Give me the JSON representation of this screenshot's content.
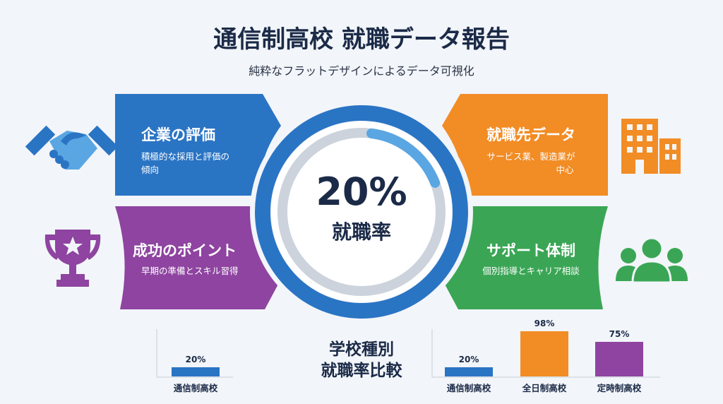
{
  "header": {
    "title": "通信制高校 就職データ報告",
    "subtitle": "純粋なフラットデザインによるデータ可視化"
  },
  "center": {
    "value": "20%",
    "label": "就職率",
    "progress_percent": 20
  },
  "panels": [
    {
      "title": "企業の評価",
      "desc_line1": "積極的な採用と評価の",
      "desc_line2": "傾向",
      "color": "#2a74c4",
      "icon": "handshake-icon"
    },
    {
      "title": "成功のポイント",
      "desc_line1": "早期の準備とスキル習得",
      "color": "#8e44a0",
      "icon": "trophy-icon"
    },
    {
      "title": "就職先データ",
      "desc_line1": "サービス業、製造業が",
      "desc_line2": "中心",
      "color": "#f28c25",
      "icon": "building-icon"
    },
    {
      "title": "サポート体制",
      "desc_line1": "個別指導とキャリア相談",
      "color": "#3aa655",
      "icon": "people-icon"
    }
  ],
  "comparison": {
    "title_line1": "学校種別",
    "title_line2": "就職率比較"
  },
  "chart_data": [
    {
      "type": "bar",
      "categories": [
        "通信制高校"
      ],
      "values": [
        20
      ],
      "labels": [
        "20%"
      ],
      "colors": [
        "#2a74c4"
      ]
    },
    {
      "type": "bar",
      "categories": [
        "通信制高校",
        "全日制高校",
        "定時制高校"
      ],
      "values": [
        20,
        98,
        75
      ],
      "labels": [
        "20%",
        "98%",
        "75%"
      ],
      "colors": [
        "#2a74c4",
        "#f28c25",
        "#8e44a0"
      ]
    }
  ]
}
